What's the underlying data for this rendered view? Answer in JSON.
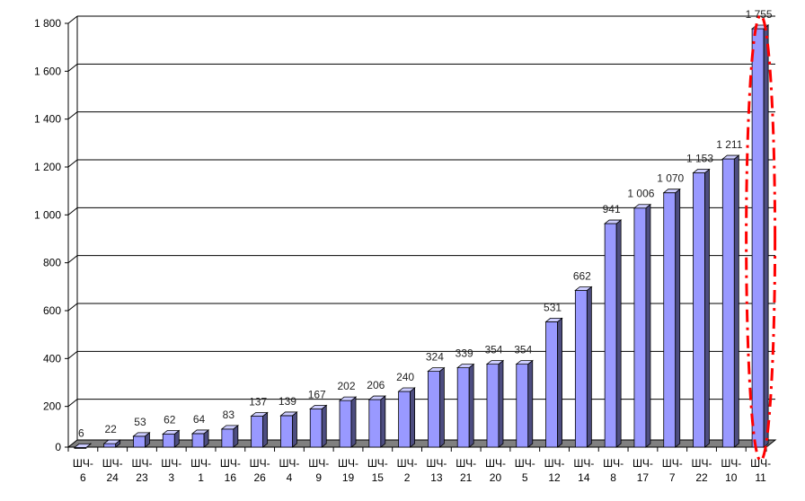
{
  "chart_data": {
    "type": "bar",
    "categories": [
      {
        "line1": "ШЧ-",
        "line2": "6"
      },
      {
        "line1": "ШЧ-",
        "line2": "24"
      },
      {
        "line1": "ШЧ-",
        "line2": "23"
      },
      {
        "line1": "ШЧ-",
        "line2": "3"
      },
      {
        "line1": "ШЧ-",
        "line2": "1"
      },
      {
        "line1": "ШЧ-",
        "line2": "16"
      },
      {
        "line1": "ШЧ-",
        "line2": "26"
      },
      {
        "line1": "ШЧ-",
        "line2": "4"
      },
      {
        "line1": "ШЧ-",
        "line2": "9"
      },
      {
        "line1": "ШЧ-",
        "line2": "19"
      },
      {
        "line1": "ШЧ-",
        "line2": "15"
      },
      {
        "line1": "ШЧ-",
        "line2": "2"
      },
      {
        "line1": "ШЧ-",
        "line2": "13"
      },
      {
        "line1": "ШЧ-",
        "line2": "21"
      },
      {
        "line1": "ШЧ-",
        "line2": "20"
      },
      {
        "line1": "ШЧ-",
        "line2": "5"
      },
      {
        "line1": "ШЧ-",
        "line2": "12"
      },
      {
        "line1": "ШЧ-",
        "line2": "14"
      },
      {
        "line1": "ШЧ-",
        "line2": "8"
      },
      {
        "line1": "ШЧ-",
        "line2": "17"
      },
      {
        "line1": "ШЧ-",
        "line2": "7"
      },
      {
        "line1": "ШЧ-",
        "line2": "22"
      },
      {
        "line1": "ШЧ-",
        "line2": "10"
      },
      {
        "line1": "ШЧ-",
        "line2": "11"
      }
    ],
    "values": [
      6,
      22,
      53,
      62,
      64,
      83,
      137,
      139,
      167,
      202,
      206,
      240,
      324,
      339,
      354,
      354,
      531,
      662,
      941,
      1006,
      1070,
      1153,
      1211,
      1755
    ],
    "value_labels": [
      "6",
      "22",
      "53",
      "62",
      "64",
      "83",
      "137",
      "139",
      "167",
      "202",
      "206",
      "240",
      "324",
      "339",
      "354",
      "354",
      "531",
      "662",
      "941",
      "1 006",
      "1 070",
      "1 153",
      "1 211",
      "1 755"
    ],
    "y_ticks": [
      {
        "value": 0,
        "label": "0"
      },
      {
        "value": 200,
        "label": "200"
      },
      {
        "value": 400,
        "label": "400"
      },
      {
        "value": 600,
        "label": "600"
      },
      {
        "value": 800,
        "label": "800"
      },
      {
        "value": 1000,
        "label": "1 000"
      },
      {
        "value": 1200,
        "label": "1 200"
      },
      {
        "value": 1400,
        "label": "1 400"
      },
      {
        "value": 1600,
        "label": "1 600"
      },
      {
        "value": 1800,
        "label": "1 800"
      }
    ],
    "ylim": [
      0,
      1800
    ],
    "title": "",
    "xlabel": "",
    "ylabel": "",
    "grid": true,
    "legend": "none",
    "highlighted_category": "ШЧ-11",
    "colors": {
      "bar_front": "#9999ff",
      "bar_side": "#4d4d80",
      "bar_top": "#ccccff",
      "floor": "#808080",
      "grid": "#000000",
      "highlight": "#ff0000"
    }
  }
}
